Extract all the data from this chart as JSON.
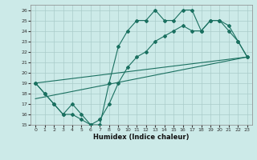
{
  "xlabel": "Humidex (Indice chaleur)",
  "bg_color": "#cceae8",
  "grid_color": "#aaccca",
  "line_color": "#1a7060",
  "xlim": [
    -0.5,
    23.5
  ],
  "ylim": [
    15,
    26.5
  ],
  "xticks": [
    0,
    1,
    2,
    3,
    4,
    5,
    6,
    7,
    8,
    9,
    10,
    11,
    12,
    13,
    14,
    15,
    16,
    17,
    18,
    19,
    20,
    21,
    22,
    23
  ],
  "yticks": [
    15,
    16,
    17,
    18,
    19,
    20,
    21,
    22,
    23,
    24,
    25,
    26
  ],
  "line1_x": [
    0,
    1,
    2,
    3,
    4,
    5,
    6,
    7,
    8,
    9,
    10,
    11,
    12,
    13,
    14,
    15,
    16,
    17,
    18,
    19,
    20,
    21,
    22,
    23
  ],
  "line1_y": [
    19,
    18,
    17,
    16,
    17,
    16,
    15,
    15,
    19,
    22.5,
    24,
    25,
    25,
    26,
    25,
    25,
    26,
    26,
    24,
    25,
    25,
    24,
    23,
    21.5
  ],
  "line2_x": [
    0,
    1,
    2,
    3,
    4,
    5,
    6,
    7,
    8,
    9,
    10,
    11,
    12,
    13,
    14,
    15,
    16,
    17,
    18,
    19,
    20,
    21,
    22,
    23
  ],
  "line2_y": [
    19,
    18,
    17,
    16,
    16,
    15.5,
    15,
    15.5,
    17,
    19,
    20.5,
    21.5,
    22,
    23,
    23.5,
    24,
    24.5,
    24,
    24,
    25,
    25,
    24.5,
    23,
    21.5
  ],
  "line3_x": [
    0,
    23
  ],
  "line3_y": [
    17.5,
    21.5
  ],
  "line4_x": [
    0,
    23
  ],
  "line4_y": [
    19,
    21.5
  ]
}
